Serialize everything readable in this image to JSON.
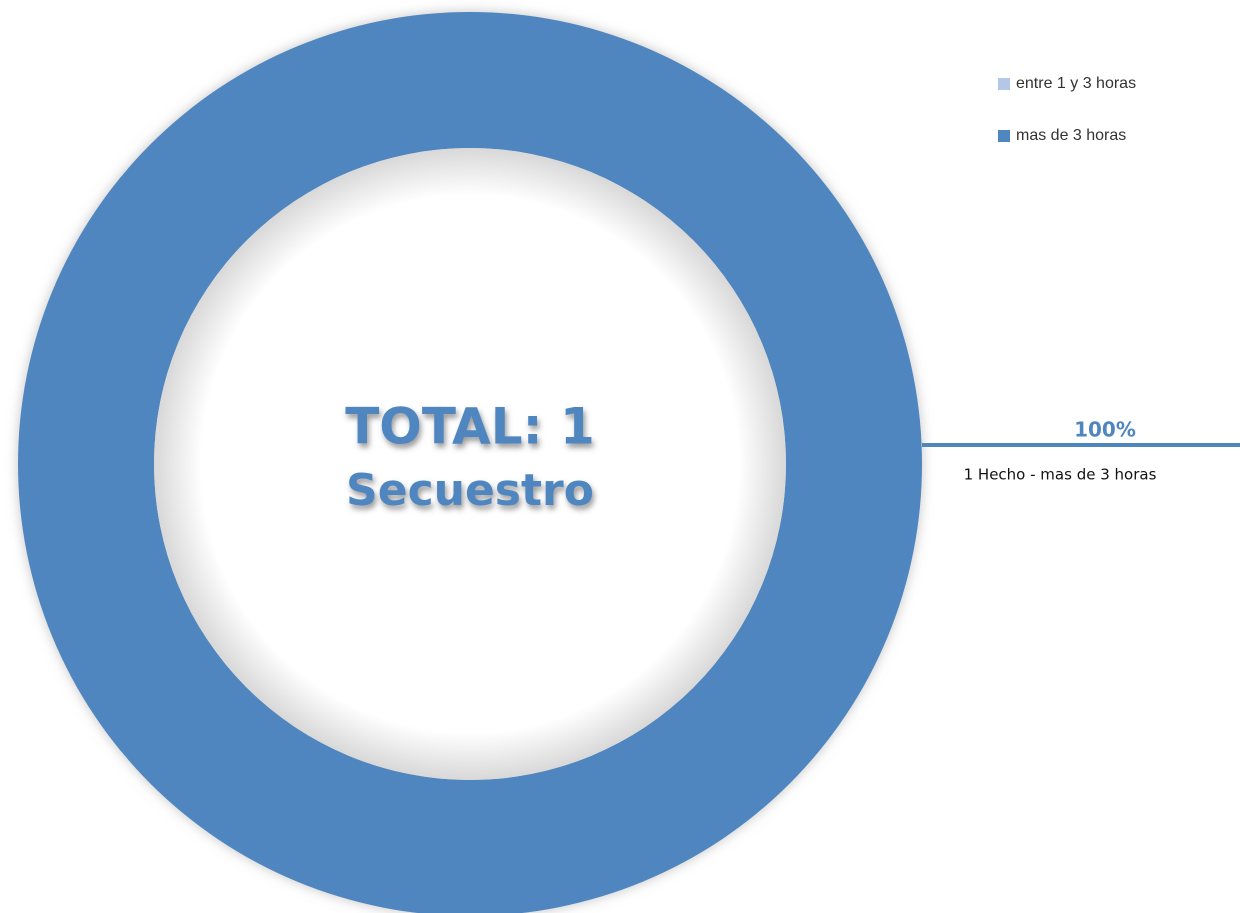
{
  "chart_data": {
    "type": "donut",
    "categories": [
      "entre 1 y 3 horas",
      "mas de 3 horas"
    ],
    "values": [
      0,
      100
    ],
    "value_labels": [
      null,
      "100%"
    ],
    "colors": [
      "#b4c7e7",
      "#4f86bf"
    ],
    "center_title": "TOTAL: 1",
    "center_subtitle": "Secuestro",
    "annotation": "1 Hecho - mas de 3 horas",
    "legend": "top-right"
  }
}
